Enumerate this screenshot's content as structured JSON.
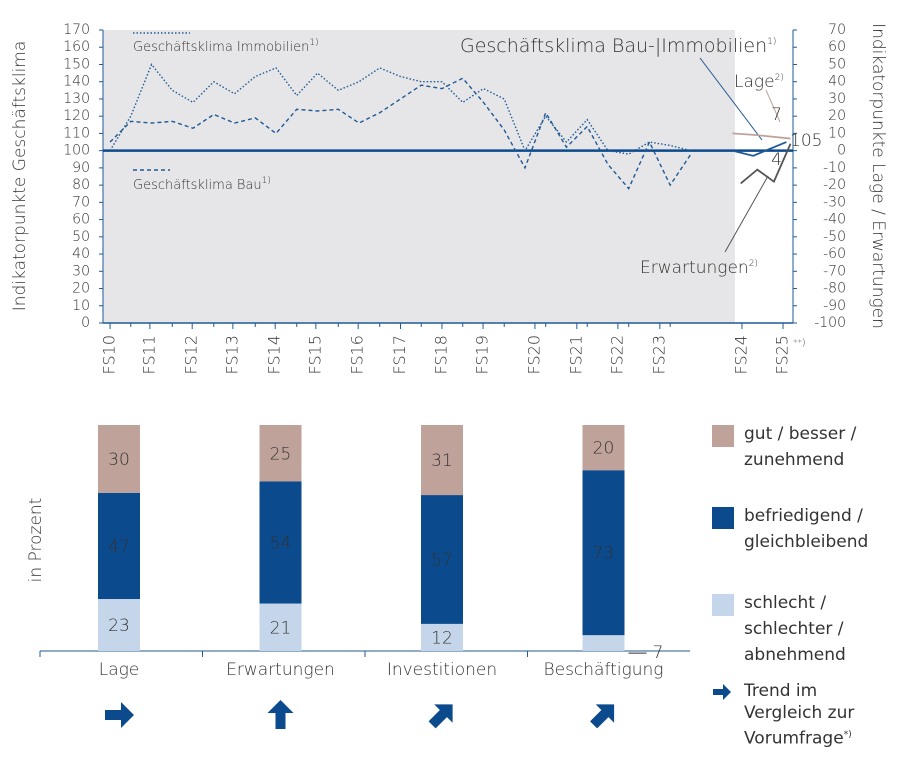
{
  "chart_data": [
    {
      "type": "line",
      "y_label": "Indikatorpunkte Geschäftsklima",
      "y2_label": "Indikatorpunkte Lage / Erwartungen",
      "xlim": [
        -0.17,
        16.46
      ],
      "xticks": [
        {
          "value": 0,
          "label": "FS10"
        },
        {
          "value": 0.96,
          "label": "FS11"
        },
        {
          "value": 1.98,
          "label": "FS12"
        },
        {
          "value": 2.96,
          "label": "FS13"
        },
        {
          "value": 3.98,
          "label": "FS14"
        },
        {
          "value": 4.96,
          "label": "FS15"
        },
        {
          "value": 5.98,
          "label": "FS16"
        },
        {
          "value": 7,
          "label": "FS17"
        },
        {
          "value": 8,
          "label": "FS18"
        },
        {
          "value": 8.99,
          "label": "FS19"
        },
        {
          "value": 10.24,
          "label": "FS20"
        },
        {
          "value": 11.25,
          "label": "FS21"
        },
        {
          "value": 12.24,
          "label": "FS22"
        },
        {
          "value": 13.25,
          "label": "FS23"
        },
        {
          "value": 15.23,
          "label": "FS24"
        },
        {
          "value": 16.22,
          "label": "FS25"
        }
      ],
      "x_note": "**)",
      "shaded_xlim": [
        -0.17,
        15.06
      ],
      "ylim": [
        0,
        170
      ],
      "yticks": [
        0,
        10,
        20,
        30,
        40,
        50,
        60,
        70,
        80,
        90,
        100,
        110,
        120,
        130,
        140,
        150,
        160,
        170
      ],
      "y2lim": [
        -100,
        70
      ],
      "y2ticks": [
        -100,
        -90,
        -80,
        -70,
        -60,
        -50,
        -40,
        -30,
        -20,
        -10,
        0,
        10,
        20,
        30,
        40,
        50,
        60,
        70
      ],
      "reference_line": 100,
      "series": [
        {
          "name": "Geschäftsklima Immobilien",
          "note": "1)",
          "color": "#1f5a96",
          "style": "dotted",
          "x": [
            0,
            0.5,
            1,
            1.5,
            2,
            2.5,
            3,
            3.5,
            4,
            4.5,
            5,
            5.5,
            6,
            6.5,
            7,
            7.5,
            8,
            8.5,
            9,
            9.5,
            10,
            10.5,
            11,
            11.5,
            12,
            12.5,
            13,
            13.5,
            14
          ],
          "values": [
            100,
            120,
            150,
            135,
            128,
            140,
            133,
            143,
            148,
            132,
            145,
            135,
            140,
            148,
            143,
            140,
            140,
            128,
            136,
            130,
            100,
            120,
            105,
            118,
            100,
            98,
            105,
            103,
            100
          ]
        },
        {
          "name": "Geschäftsklima Bau",
          "note": "1)",
          "color": "#1f5a96",
          "style": "dashed",
          "x": [
            0,
            0.5,
            1,
            1.5,
            2,
            2.5,
            3,
            3.5,
            4,
            4.5,
            5,
            5.5,
            6,
            6.5,
            7,
            7.5,
            8,
            8.5,
            9,
            9.5,
            10,
            10.5,
            11,
            11.5,
            12,
            12.5,
            13,
            13.5,
            14
          ],
          "values": [
            105,
            117,
            116,
            117,
            113,
            121,
            116,
            119,
            110,
            124,
            123,
            124,
            116,
            122,
            130,
            138,
            136,
            142,
            128,
            112,
            90,
            122,
            102,
            114,
            92,
            78,
            105,
            80,
            98
          ]
        },
        {
          "name": "Geschäftsklima Bau-|Immobilien",
          "note": "1)",
          "color": "#1f5a96",
          "style": "solid",
          "x": [
            15.0,
            15.5,
            16.0,
            16.3
          ],
          "values": [
            100,
            97,
            102,
            105
          ],
          "label_last": true
        },
        {
          "name": "Lage",
          "note": "2)",
          "color": "#bfa39a",
          "style": "solid",
          "axis": "y2",
          "x": [
            15.0,
            15.6,
            16.4
          ],
          "values": [
            10,
            9,
            7
          ],
          "label_last": true
        },
        {
          "name": "Erwartungen",
          "note": "2)",
          "color": "#555555",
          "style": "solid",
          "axis": "y2",
          "x": [
            15.2,
            15.6,
            16.0,
            16.4
          ],
          "values": [
            -19,
            -11,
            -18,
            4
          ],
          "label_last": true
        }
      ]
    },
    {
      "type": "stacked_bar",
      "y_label": "in Prozent",
      "ylim": [
        0,
        100
      ],
      "categories": [
        "Lage",
        "Erwartungen",
        "Investitionen",
        "Beschäftigung"
      ],
      "series": [
        {
          "name": "schlecht / schlechter / abnehmend",
          "color": "#c6d6ea",
          "label_color": "#333333",
          "values": [
            23,
            21,
            12,
            7
          ]
        },
        {
          "name": "befriedigend / gleichbleibend",
          "color": "#0b4a8d",
          "label_color": "#ffffff",
          "values": [
            47,
            54,
            57,
            73
          ]
        },
        {
          "name": "gut / besser / zunehmend",
          "color": "#bfa39a",
          "label_color": "#333333",
          "values": [
            30,
            25,
            31,
            20
          ]
        }
      ],
      "trend": [
        "right",
        "up",
        "up-right",
        "up-right"
      ],
      "trend_color": "#0b4a8d",
      "trend_legend": "Trend im Vergleich zur Vorumfrage",
      "trend_note": "*)"
    }
  ]
}
